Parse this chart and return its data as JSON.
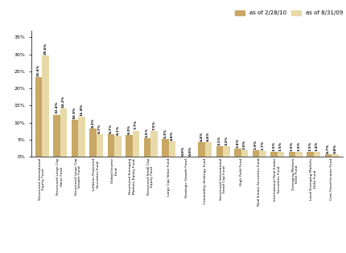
{
  "categories": [
    "Structured International\nEquity Fund",
    "Structured Large Cap\nValue Fund",
    "Structured Large Cap\nGrowth Fund",
    "Inflation Protected\nSecurities Fund",
    "Global Income\nFund",
    "Structured Emerging\nMarkets Equity Fund",
    "Structured Small Cap\nEquity Fund",
    "Large Cap Value Fund",
    "Strategic Growth Fund",
    "Commodity Strategy Fund",
    "Structured International\nSmall Cap Fund",
    "High Yield Fund",
    "Real Estate Securities Fund",
    "International Real Estate\nSecurities Fund",
    "Emerging Markets\nDebt Fund",
    "Local Emerging Markets\nDebt Fund",
    "Core Fixed Income Fund"
  ],
  "values_2010": [
    23.4,
    12.4,
    10.9,
    8.3,
    6.7,
    6.3,
    5.5,
    5.3,
    0.0,
    4.4,
    3.1,
    2.4,
    1.9,
    1.5,
    1.5,
    1.5,
    0.7
  ],
  "values_2009": [
    29.6,
    14.2,
    11.8,
    6.7,
    6.1,
    7.7,
    7.5,
    4.6,
    0.0,
    4.4,
    3.2,
    2.0,
    1.7,
    1.5,
    1.5,
    1.4,
    0.8
  ],
  "color_2010": "#C8A864",
  "color_2009": "#E8D9A8",
  "bar_width": 0.38,
  "ylim": [
    0,
    37
  ],
  "yticks": [
    0,
    5,
    10,
    15,
    20,
    25,
    30,
    35
  ],
  "ytick_labels": [
    "0%",
    "5%",
    "10%",
    "15%",
    "20%",
    "25%",
    "30%",
    "35%"
  ],
  "legend_label_2010": "as of 2/28/10",
  "legend_label_2009": "as of 8/31/09",
  "val_fontsize": 3.2,
  "xtick_fontsize": 3.2,
  "ytick_fontsize": 4.5,
  "legend_fontsize": 5.0,
  "background_color": "#FFFFFF"
}
